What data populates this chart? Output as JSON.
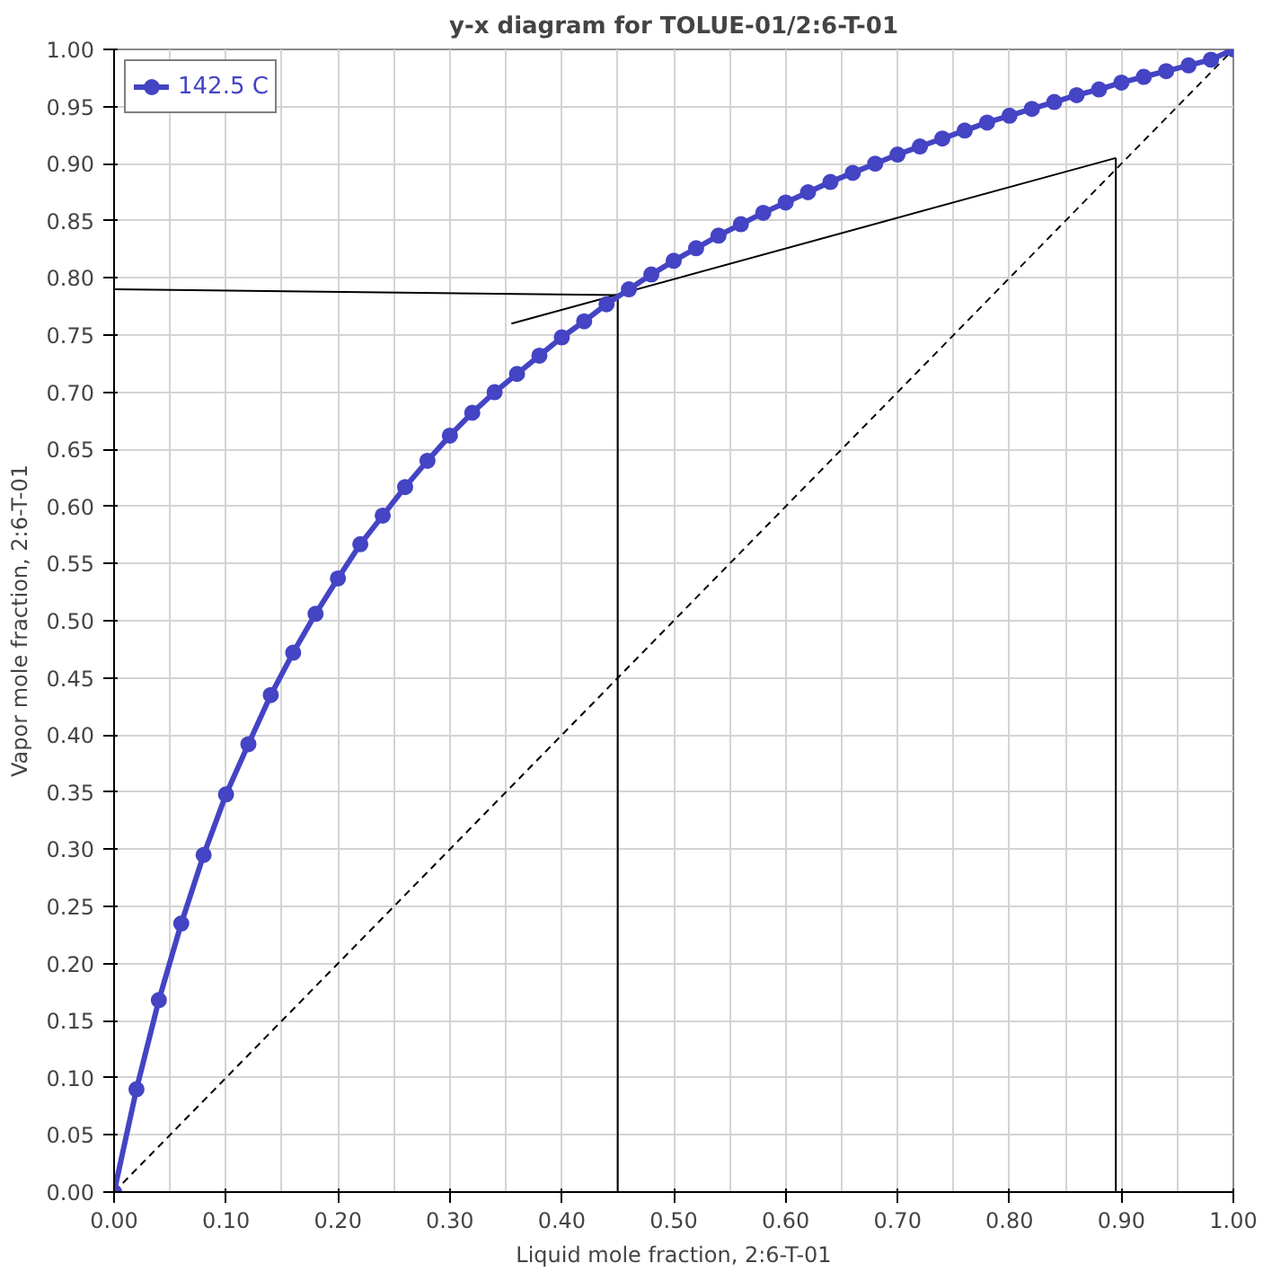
{
  "chart_data": {
    "type": "line",
    "title": "y-x diagram for TOLUE-01/2:6-T-01",
    "xlabel": "Liquid mole fraction, 2:6-T-01",
    "ylabel": "Vapor mole fraction, 2:6-T-01",
    "x": [
      0,
      0.02,
      0.04,
      0.06,
      0.08,
      0.1,
      0.12,
      0.14,
      0.16,
      0.18,
      0.2,
      0.22,
      0.24,
      0.26,
      0.28,
      0.3,
      0.32,
      0.34,
      0.36,
      0.38,
      0.4,
      0.42,
      0.44,
      0.46,
      0.48,
      0.5,
      0.52,
      0.54,
      0.56,
      0.58,
      0.6,
      0.62,
      0.64,
      0.66,
      0.68,
      0.7,
      0.72,
      0.74,
      0.76,
      0.78,
      0.8,
      0.82,
      0.84,
      0.86,
      0.88,
      0.9,
      0.92,
      0.94,
      0.96,
      0.98,
      1
    ],
    "series": [
      {
        "name": "142.5 C",
        "color": "#4444c4",
        "marker": "circle",
        "line_style": "solid",
        "values": [
          0,
          0.09,
          0.168,
          0.235,
          0.295,
          0.348,
          0.392,
          0.435,
          0.472,
          0.506,
          0.537,
          0.567,
          0.592,
          0.617,
          0.64,
          0.662,
          0.682,
          0.7,
          0.716,
          0.732,
          0.748,
          0.762,
          0.777,
          0.79,
          0.803,
          0.815,
          0.826,
          0.837,
          0.847,
          0.857,
          0.866,
          0.875,
          0.884,
          0.892,
          0.9,
          0.908,
          0.915,
          0.922,
          0.929,
          0.936,
          0.942,
          0.948,
          0.954,
          0.96,
          0.965,
          0.971,
          0.976,
          0.981,
          0.986,
          0.991,
          1
        ]
      },
      {
        "color": "#000000",
        "marker": "none",
        "line_style": "dashed",
        "x": [
          0,
          1
        ],
        "values": [
          0,
          1
        ]
      },
      {
        "color": "#000000",
        "marker": "none",
        "line_style": "solid",
        "x": [
          0,
          0.45
        ],
        "values": [
          0.79,
          0.785
        ]
      },
      {
        "color": "#000000",
        "marker": "none",
        "line_style": "solid",
        "x": [
          0.45,
          0.45
        ],
        "values": [
          0,
          0.785
        ]
      },
      {
        "color": "#000000",
        "marker": "none",
        "line_style": "solid",
        "x": [
          0.355,
          0.895
        ],
        "values": [
          0.76,
          0.905
        ]
      },
      {
        "color": "#000000",
        "marker": "none",
        "line_style": "solid",
        "x": [
          0.895,
          0.895
        ],
        "values": [
          0,
          0.905
        ]
      }
    ],
    "xlim": [
      0,
      1
    ],
    "ylim": [
      0,
      1
    ],
    "xticks": [
      {
        "value": 0,
        "label": "0.00"
      },
      {
        "value": 0.1,
        "label": "0.10"
      },
      {
        "value": 0.2,
        "label": "0.20"
      },
      {
        "value": 0.3,
        "label": "0.30"
      },
      {
        "value": 0.4,
        "label": "0.40"
      },
      {
        "value": 0.5,
        "label": "0.50"
      },
      {
        "value": 0.6,
        "label": "0.60"
      },
      {
        "value": 0.7,
        "label": "0.70"
      },
      {
        "value": 0.8,
        "label": "0.80"
      },
      {
        "value": 0.9,
        "label": "0.90"
      },
      {
        "value": 1,
        "label": "1.00"
      }
    ],
    "yticks": [
      {
        "value": 0,
        "label": "0.00"
      },
      {
        "value": 0.05,
        "label": "0.05"
      },
      {
        "value": 0.1,
        "label": "0.10"
      },
      {
        "value": 0.15,
        "label": "0.15"
      },
      {
        "value": 0.2,
        "label": "0.20"
      },
      {
        "value": 0.25,
        "label": "0.25"
      },
      {
        "value": 0.3,
        "label": "0.30"
      },
      {
        "value": 0.35,
        "label": "0.35"
      },
      {
        "value": 0.4,
        "label": "0.40"
      },
      {
        "value": 0.45,
        "label": "0.45"
      },
      {
        "value": 0.5,
        "label": "0.50"
      },
      {
        "value": 0.55,
        "label": "0.55"
      },
      {
        "value": 0.6,
        "label": "0.60"
      },
      {
        "value": 0.65,
        "label": "0.65"
      },
      {
        "value": 0.7,
        "label": "0.70"
      },
      {
        "value": 0.75,
        "label": "0.75"
      },
      {
        "value": 0.8,
        "label": "0.80"
      },
      {
        "value": 0.85,
        "label": "0.85"
      },
      {
        "value": 0.9,
        "label": "0.90"
      },
      {
        "value": 0.95,
        "label": "0.95"
      },
      {
        "value": 1,
        "label": "1.00"
      }
    ],
    "grid": true,
    "legend": "top left"
  }
}
